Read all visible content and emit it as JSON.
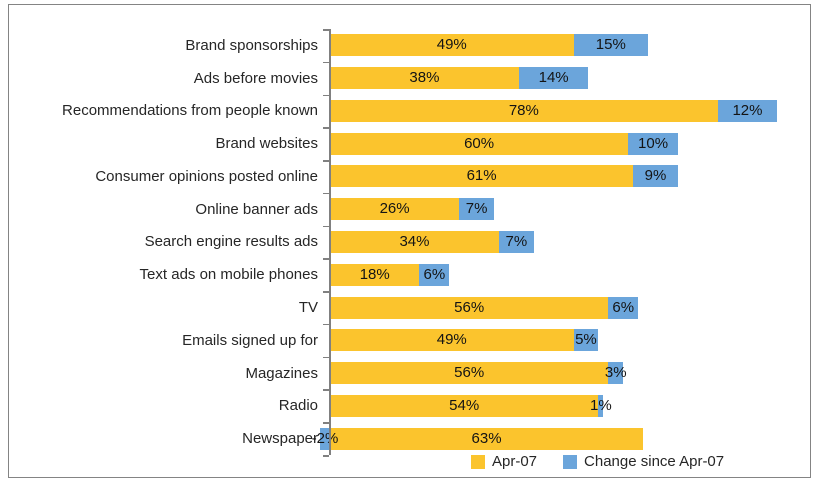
{
  "chart_data": {
    "type": "bar",
    "orientation": "horizontal",
    "stacked": true,
    "title": "",
    "xlabel": "",
    "ylabel": "",
    "grid": false,
    "legend_position": "bottom",
    "value_label_format": "{value}%",
    "axis_color": "#808080",
    "categories": [
      "Brand sponsorships",
      "Ads before movies",
      "Recommendations from people known",
      "Brand websites",
      "Consumer opinions posted online",
      "Online banner ads",
      "Search engine results ads",
      "Text ads on mobile phones",
      "TV",
      "Emails signed up for",
      "Magazines",
      "Radio",
      "Newspaper"
    ],
    "series": [
      {
        "name": "Apr-07",
        "color": "#FBC42D",
        "values": [
          49,
          38,
          78,
          60,
          61,
          26,
          34,
          18,
          56,
          49,
          56,
          54,
          63
        ],
        "labels": [
          "49%",
          "38%",
          "78%",
          "60%",
          "61%",
          "26%",
          "34%",
          "18%",
          "56%",
          "49%",
          "56%",
          "54%",
          "63%"
        ]
      },
      {
        "name": "Change since Apr-07",
        "color": "#6BA5DB",
        "values": [
          15,
          14,
          12,
          10,
          9,
          7,
          7,
          6,
          6,
          5,
          3,
          1,
          -2
        ],
        "labels": [
          "15%",
          "14%",
          "12%",
          "10%",
          "9%",
          "7%",
          "7%",
          "6%",
          "6%",
          "5%",
          "3%",
          "1%",
          "-2%"
        ]
      }
    ]
  }
}
